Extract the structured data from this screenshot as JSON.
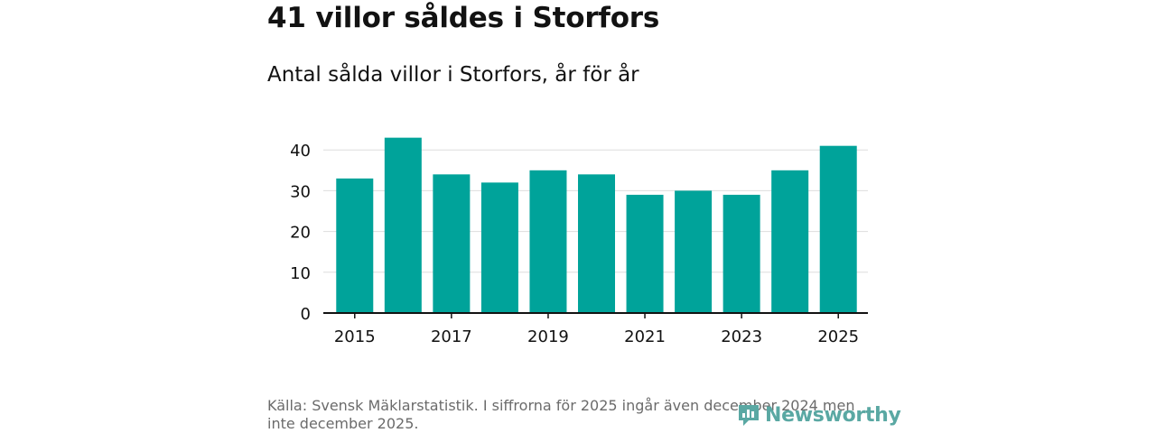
{
  "header": {
    "title": "41 villor såldes i Storfors",
    "subtitle": "Antal sålda villor i Storfors, år för år"
  },
  "chart_data": {
    "type": "bar",
    "categories": [
      "2015",
      "2016",
      "2017",
      "2018",
      "2019",
      "2020",
      "2021",
      "2022",
      "2023",
      "2024",
      "2025"
    ],
    "values": [
      33,
      43,
      34,
      32,
      35,
      34,
      29,
      30,
      29,
      35,
      41
    ],
    "x_tick_labels": [
      "2015",
      "2017",
      "2019",
      "2021",
      "2023",
      "2025"
    ],
    "y_ticks": [
      0,
      10,
      20,
      30,
      40
    ],
    "y_tick_labels": [
      "0",
      "10",
      "20",
      "30",
      "40"
    ],
    "ylim": [
      0,
      45
    ],
    "grid": true,
    "bar_color": "#00a39a",
    "gridline_color": "#dddddd",
    "axis_color": "#121212"
  },
  "footer": {
    "source": "Källa: Svensk Mäklarstatistik. I siffrorna för 2025 ingår även december 2024 men inte december 2025.",
    "logo_text": "Newsworthy",
    "logo_color": "#5aa8a3"
  }
}
